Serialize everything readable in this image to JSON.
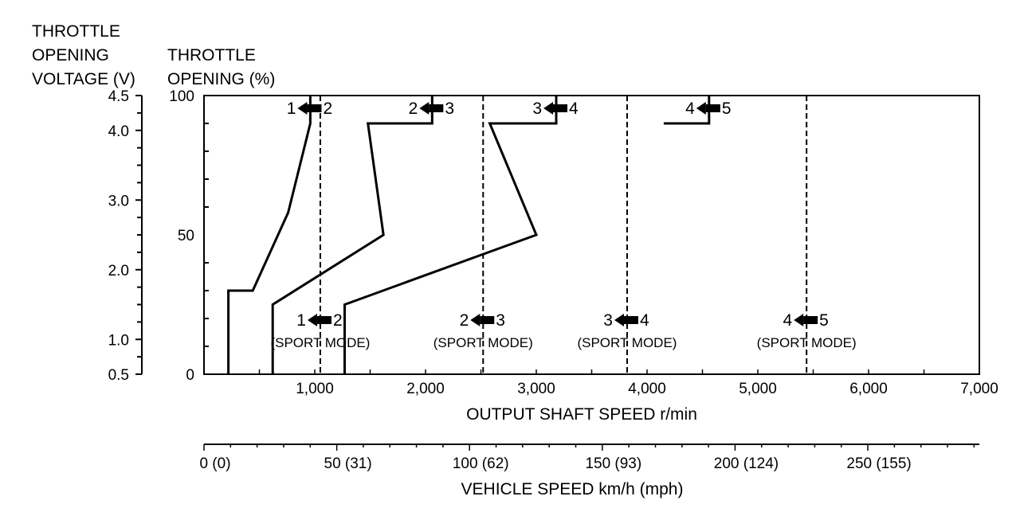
{
  "chart_data": {
    "type": "line",
    "left_axis_titles": {
      "voltage": [
        "THROTTLE",
        "OPENING",
        "VOLTAGE (V)"
      ],
      "percent": [
        "THROTTLE",
        "OPENING (%)"
      ]
    },
    "voltage_ticks": [
      "4.5",
      "4.0",
      "3.0",
      "2.0",
      "1.0",
      "0.5"
    ],
    "voltage_values": [
      4.5,
      4.0,
      3.0,
      2.0,
      1.0,
      0.5
    ],
    "percent_ticks": [
      "100",
      "50",
      "0"
    ],
    "percent_values": [
      100,
      50,
      0
    ],
    "x_axis": {
      "label": "OUTPUT SHAFT SPEED r/min",
      "range": [
        0,
        7000
      ],
      "ticks": [
        "1,000",
        "2,000",
        "3,000",
        "4,000",
        "5,000",
        "6,000",
        "7,000"
      ],
      "tick_values": [
        1000,
        2000,
        3000,
        4000,
        5000,
        6000,
        7000
      ]
    },
    "y_axis": {
      "range": [
        0,
        100
      ]
    },
    "vehicle_speed_axis": {
      "label": "VEHICLE SPEED km/h (mph)",
      "ticks": [
        "0 (0)",
        "50 (31)",
        "100 (62)",
        "150 (93)",
        "200 (124)",
        "250 (155)"
      ],
      "tick_values": [
        0,
        50,
        100,
        150,
        200,
        250
      ]
    },
    "series": [
      {
        "from": "1",
        "to": "2",
        "points": [
          [
            220,
            0
          ],
          [
            220,
            30
          ],
          [
            440,
            30
          ],
          [
            760,
            58
          ],
          [
            960,
            90
          ],
          [
            960,
            100
          ]
        ]
      },
      {
        "from": "2",
        "to": "3",
        "points": [
          [
            620,
            0
          ],
          [
            620,
            25
          ],
          [
            1620,
            50
          ],
          [
            1480,
            90
          ],
          [
            2060,
            90
          ],
          [
            2060,
            100
          ]
        ]
      },
      {
        "from": "3",
        "to": "4",
        "points": [
          [
            1270,
            0
          ],
          [
            1270,
            25
          ],
          [
            3000,
            50
          ],
          [
            2580,
            90
          ],
          [
            3180,
            90
          ],
          [
            3180,
            100
          ]
        ]
      },
      {
        "from": "4",
        "to": "5",
        "points": [
          [
            4150,
            90
          ],
          [
            4560,
            90
          ],
          [
            4560,
            100
          ]
        ]
      }
    ],
    "sport_mode_lines": [
      {
        "from": "1",
        "to": "2",
        "x": 1050,
        "label": "(SPORT MODE)"
      },
      {
        "from": "2",
        "to": "3",
        "x": 2520,
        "label": "(SPORT MODE)"
      },
      {
        "from": "3",
        "to": "4",
        "x": 3820,
        "label": "(SPORT MODE)"
      },
      {
        "from": "4",
        "to": "5",
        "x": 5440,
        "label": "(SPORT MODE)"
      }
    ],
    "grid": false
  }
}
